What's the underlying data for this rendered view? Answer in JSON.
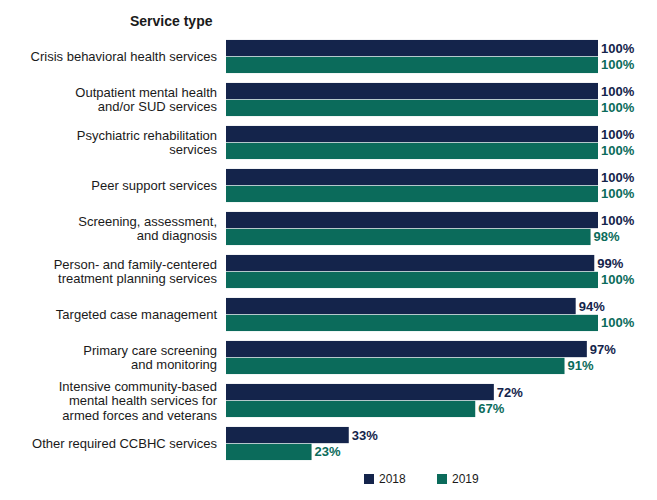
{
  "chart_data": {
    "type": "bar",
    "orientation": "horizontal",
    "y_label": "Service type",
    "categories": [
      "Crisis behavioral health services",
      "Outpatient mental health\nand/or SUD services",
      "Psychiatric rehabilitation\nservices",
      "Peer support services",
      "Screening, assessment,\nand diagnosis",
      "Person- and family-centered\ntreatment planning services",
      "Targeted case management",
      "Primary care screening\nand monitoring",
      "Intensive community-based\nmental health services for\narmed forces and veterans",
      "Other required CCBHC services"
    ],
    "series": [
      {
        "name": "2018",
        "color": "#14244b",
        "values": [
          100,
          100,
          100,
          100,
          100,
          99,
          94,
          97,
          72,
          33
        ],
        "value_labels": [
          "100%",
          "100%",
          "100%",
          "100%",
          "100%",
          "99%",
          "94%",
          "97%",
          "72%",
          "33%"
        ]
      },
      {
        "name": "2019",
        "color": "#0b6b5b",
        "values": [
          100,
          100,
          100,
          100,
          98,
          100,
          100,
          91,
          67,
          23
        ],
        "value_labels": [
          "100%",
          "100%",
          "100%",
          "100%",
          "98%",
          "100%",
          "100%",
          "91%",
          "67%",
          "23%"
        ]
      }
    ],
    "xlim": [
      0,
      100
    ],
    "data_labels": true,
    "tick_labels": "y",
    "grid": false,
    "legend": "bottom"
  }
}
